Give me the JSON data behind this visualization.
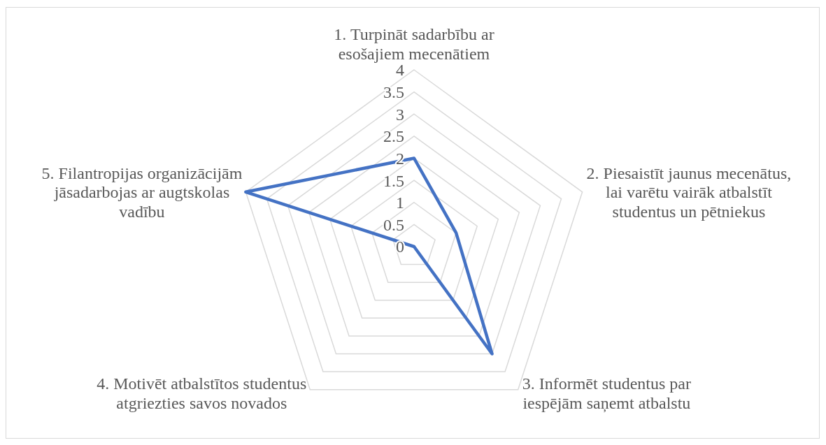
{
  "chart_data": {
    "type": "radar",
    "categories": [
      "1. Turpināt sadarbību ar esošajiem mecenātiem",
      "2. Piesaistīt jaunus mecenātus, lai varētu vairāk atbalstīt studentus un pētniekus",
      "3. Informēt studentus par iespējām saņemt atbalstu",
      "4. Motivēt atbalstītos studentus atgriezties savos novados",
      "5. Filantropijas organizācijām jāsadarbojas ar augtskolas vadību"
    ],
    "series": [
      {
        "color": "#4472c4",
        "values": [
          2,
          1,
          3,
          0,
          4
        ]
      }
    ],
    "ylim": [
      0,
      4
    ],
    "yticks": [
      0,
      0.5,
      1,
      1.5,
      2,
      2.5,
      3,
      3.5,
      4
    ],
    "grid": true
  }
}
